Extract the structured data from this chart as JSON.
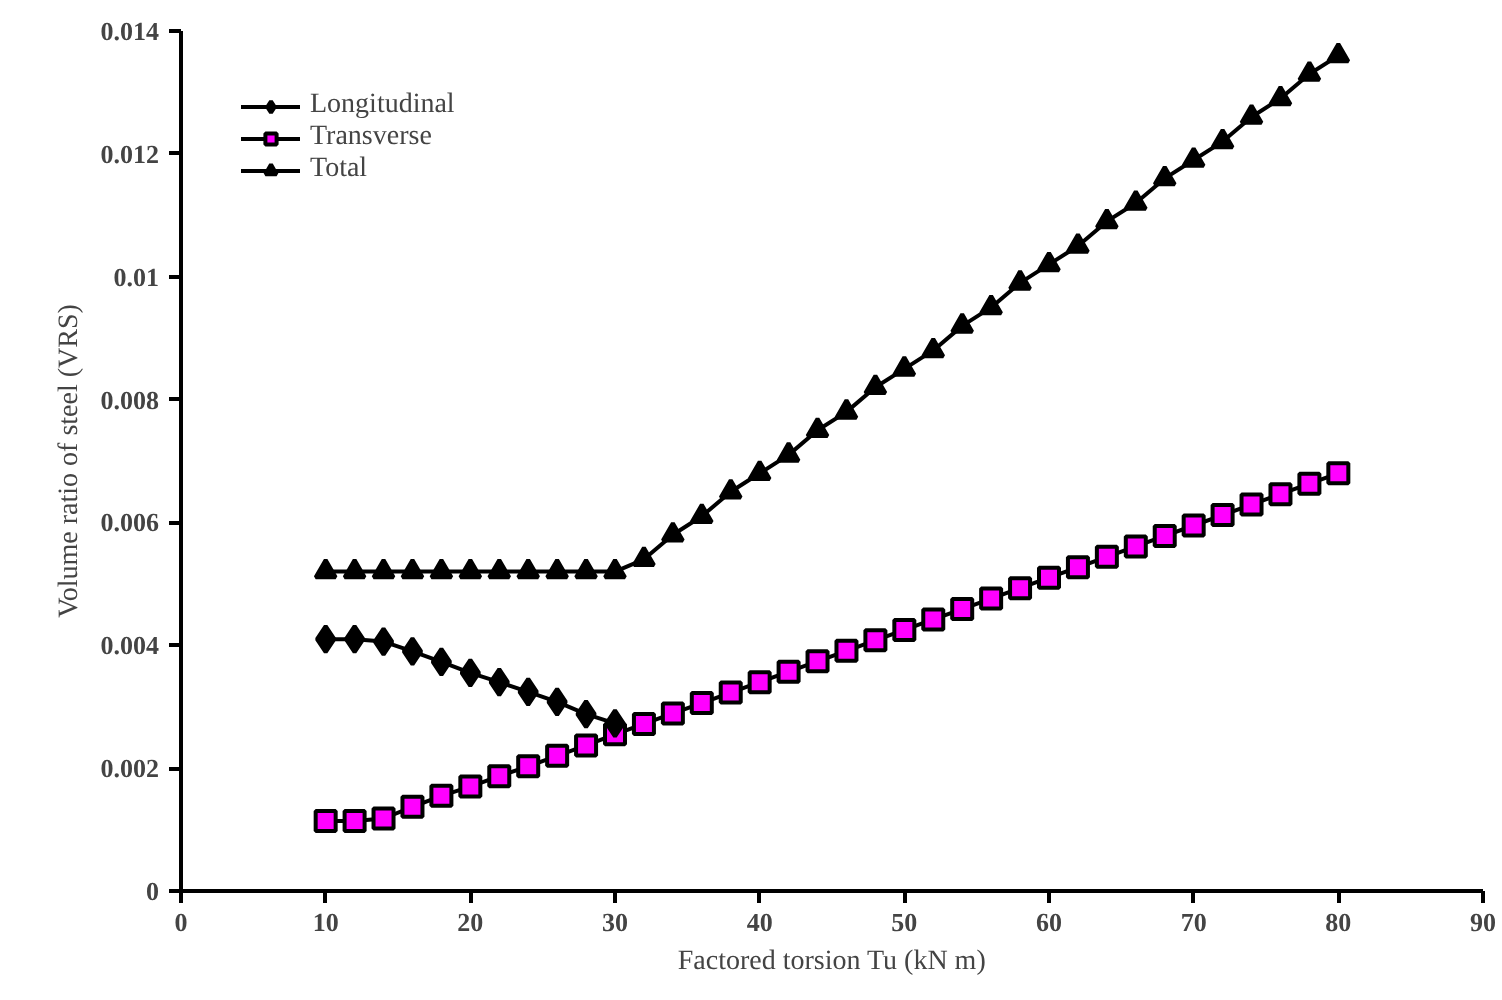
{
  "chart_data": {
    "type": "line",
    "xlabel": "Factored torsion Tu (kN m)",
    "ylabel": "Volume ratio of steel (VRS)",
    "xlim": [
      0,
      90
    ],
    "xticks": [
      0,
      10,
      20,
      30,
      40,
      50,
      60,
      70,
      80,
      90
    ],
    "ylim": [
      0,
      0.014
    ],
    "yticks": [
      0,
      0.002,
      0.004,
      0.006,
      0.008,
      0.01,
      0.012,
      0.014
    ],
    "grid": false,
    "legend": "top left",
    "series": [
      {
        "name": "Longitudinal",
        "color": "#000000",
        "marker": "diamond",
        "x": [
          10,
          12,
          14,
          16,
          18,
          20,
          22,
          24,
          26,
          28,
          30
        ],
        "values": [
          0.0041,
          0.0041,
          0.00406,
          0.0039,
          0.00373,
          0.00355,
          0.0034,
          0.00324,
          0.00308,
          0.00288,
          0.00273
        ]
      },
      {
        "name": "Transverse",
        "color": "#ff00ff",
        "marker": "square",
        "x": [
          10,
          12,
          14,
          16,
          18,
          20,
          22,
          24,
          26,
          28,
          30,
          32,
          34,
          36,
          38,
          40,
          42,
          44,
          46,
          48,
          50,
          52,
          54,
          56,
          58,
          60,
          62,
          64,
          66,
          68,
          70,
          72,
          74,
          76,
          78,
          80
        ],
        "values": [
          0.00114,
          0.00114,
          0.00118,
          0.00137,
          0.00155,
          0.0017,
          0.00187,
          0.00203,
          0.0022,
          0.00237,
          0.00255,
          0.00272,
          0.00289,
          0.00306,
          0.00323,
          0.0034,
          0.00357,
          0.00374,
          0.00391,
          0.00408,
          0.00425,
          0.00442,
          0.00459,
          0.00476,
          0.00493,
          0.0051,
          0.00527,
          0.00544,
          0.00561,
          0.00578,
          0.00595,
          0.00612,
          0.00629,
          0.00646,
          0.00663,
          0.0068
        ]
      },
      {
        "name": "Total",
        "color": "#000000",
        "marker": "triangle",
        "x": [
          10,
          12,
          14,
          16,
          18,
          20,
          22,
          24,
          26,
          28,
          30,
          32,
          34,
          36,
          38,
          40,
          42,
          44,
          46,
          48,
          50,
          52,
          54,
          56,
          58,
          60,
          62,
          64,
          66,
          68,
          70,
          72,
          74,
          76,
          78,
          80
        ],
        "values": [
          0.0052,
          0.0052,
          0.0052,
          0.0052,
          0.0052,
          0.0052,
          0.0052,
          0.0052,
          0.0052,
          0.0052,
          0.0052,
          0.0054,
          0.0058,
          0.0061,
          0.0065,
          0.0068,
          0.0071,
          0.0075,
          0.0078,
          0.0082,
          0.0085,
          0.0088,
          0.0092,
          0.0095,
          0.0099,
          0.0102,
          0.0105,
          0.0109,
          0.0112,
          0.0116,
          0.0119,
          0.0122,
          0.0126,
          0.0129,
          0.0133,
          0.0136
        ]
      }
    ]
  }
}
